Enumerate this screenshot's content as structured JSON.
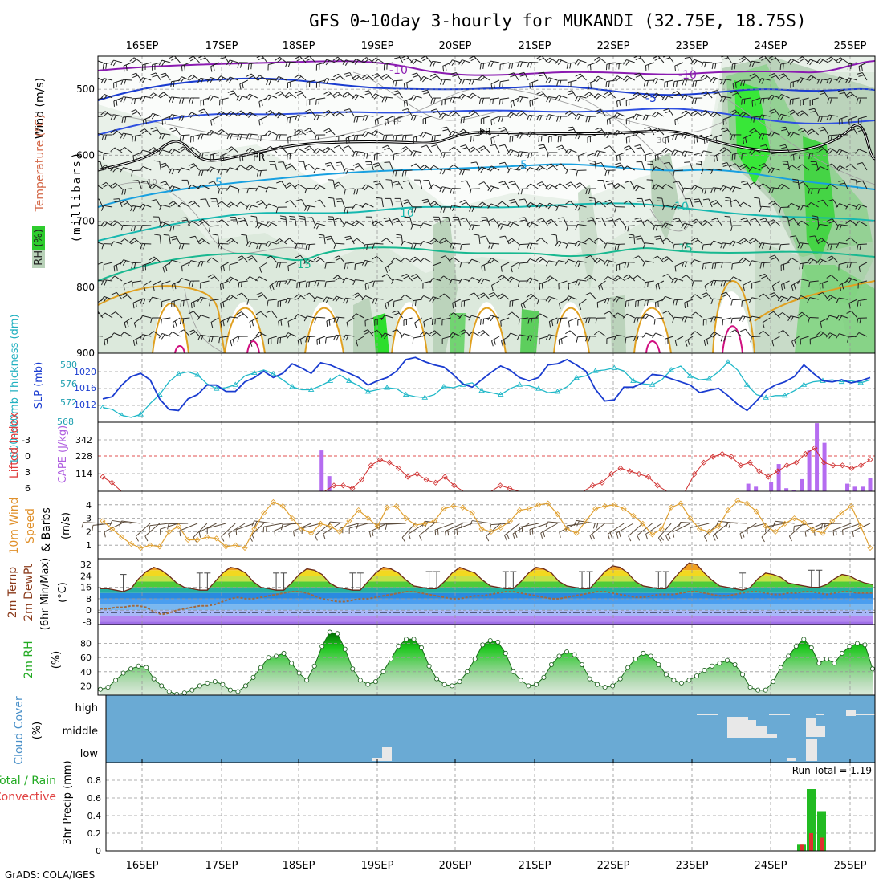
{
  "title": "GFS 0~10day 3-hourly for MUKANDI (32.75E, 18.75S)",
  "footer": "GrADS: COLA/IGES",
  "dates": [
    "16SEP",
    "17SEP",
    "18SEP",
    "19SEP",
    "20SEP",
    "21SEP",
    "22SEP",
    "23SEP",
    "24SEP",
    "25SEP"
  ],
  "panels": {
    "upper": {
      "label_wind": "Wind (m/s)",
      "label_temp": "Temperature (°C)",
      "label_rh": "RH (%)",
      "label_mb": "(millibars)",
      "yticks": [
        500,
        600,
        700,
        800,
        900
      ],
      "temp_labels": [
        "-10",
        "-10",
        "-5",
        "5",
        "5",
        "10",
        "10",
        "15",
        "15"
      ],
      "fr_labels": [
        "FR",
        "FR"
      ]
    },
    "slp": {
      "label_thk": "1000-500mb Thickness (dm)",
      "label_slp": "SLP (mb)",
      "thk_ticks": [
        "580",
        "576",
        "572",
        "568"
      ],
      "slp_ticks": [
        "1020",
        "1016",
        "1012"
      ]
    },
    "cape": {
      "label_li": "Lifted Index",
      "label_cape": "CAPE (J/kg)",
      "li_ticks": [
        "-3",
        "0",
        "3",
        "6"
      ],
      "cape_ticks": [
        "342",
        "228",
        "114"
      ]
    },
    "wind10": {
      "label_a": "10m Wind",
      "label_b": "Speed",
      "label_c": "& Barbs",
      "label_u": "(m/s)",
      "yticks": [
        "4",
        "3",
        "2",
        "1"
      ]
    },
    "temp2m": {
      "label_a": "2m Temp",
      "label_b": "2m DewPt",
      "label_c": "(6hr Min/Max)",
      "label_u": "(°C)",
      "yticks": [
        "32",
        "24",
        "16",
        "8",
        "0",
        "-8"
      ]
    },
    "rh2m": {
      "label_a": "2m RH",
      "label_u": "(%)",
      "yticks": [
        "80",
        "60",
        "40",
        "20"
      ]
    },
    "cloud": {
      "label_a": "Cloud Cover",
      "label_u": "(%)",
      "levels": [
        "high",
        "middle",
        "low"
      ]
    },
    "precip": {
      "label_a": "Total / Rain",
      "label_b": "Convective",
      "label_c": "3hr Precip (mm)",
      "run_total": "Run Total = 1.19",
      "yticks": [
        "0.8",
        "0.6",
        "0.4",
        "0.2",
        "0"
      ]
    }
  },
  "chart_data": [
    {
      "type": "line",
      "name": "SLP (mb)",
      "ylim": [
        1009,
        1022
      ],
      "values": [
        1013.4,
        1013.8,
        1016.0,
        1017.6,
        1018.2,
        1017.0,
        1013.4,
        1011.4,
        1011.2,
        1013.4,
        1014.2,
        1016.0,
        1016.0,
        1014.8,
        1014.8,
        1016.6,
        1017.4,
        1018.6,
        1017.4,
        1018.2,
        1020.0,
        1019.2,
        1018.2,
        1020.2,
        1019.8,
        1019.0,
        1018.2,
        1017.4,
        1016.0,
        1016.8,
        1017.4,
        1018.6,
        1020.8,
        1021.2,
        1020.4,
        1019.8,
        1019.4,
        1018.0,
        1016.2,
        1015.6,
        1017.0,
        1018.4,
        1019.6,
        1018.8,
        1017.4,
        1016.8,
        1017.4,
        1019.8,
        1020.0,
        1020.8,
        1019.8,
        1018.6,
        1015.2,
        1013.0,
        1013.2,
        1015.6,
        1015.6,
        1016.4,
        1018.0,
        1017.8,
        1017.2,
        1016.6,
        1016.0,
        1014.6,
        1015.0,
        1015.4,
        1014.0,
        1012.4,
        1011.2,
        1013.0,
        1015.0,
        1016.0,
        1016.6,
        1017.6,
        1019.8,
        1018.2,
        1016.8,
        1016.6,
        1017.0,
        1016.4,
        1016.8,
        1017.4
      ]
    },
    {
      "type": "line",
      "name": "1000-500mb Thickness (dm)",
      "ylim": [
        568,
        582
      ],
      "values": [
        571.0,
        570.6,
        569.4,
        569.0,
        569.6,
        571.8,
        573.6,
        576.2,
        577.8,
        578.2,
        577.6,
        575.8,
        574.8,
        575.0,
        575.6,
        577.4,
        578.0,
        578.6,
        577.8,
        576.6,
        575.2,
        574.6,
        574.6,
        575.4,
        576.4,
        577.6,
        576.4,
        575.4,
        574.2,
        574.6,
        575.0,
        574.8,
        573.6,
        573.2,
        573.0,
        573.6,
        575.2,
        575.0,
        575.6,
        576.0,
        574.4,
        574.0,
        573.6,
        574.8,
        575.6,
        575.4,
        574.8,
        574.0,
        574.2,
        575.2,
        577.0,
        577.4,
        578.4,
        578.6,
        579.0,
        578.4,
        576.4,
        575.8,
        575.6,
        576.6,
        578.6,
        579.4,
        577.4,
        576.6,
        576.8,
        578.2,
        580.2,
        578.6,
        575.6,
        573.6,
        573.0,
        573.4,
        573.4,
        574.4,
        575.6,
        576.2,
        576.4,
        576.6,
        576.2,
        576.4,
        576.0,
        576.6
      ]
    },
    {
      "type": "line",
      "name": "Lifted Index",
      "ylim": [
        6,
        -6
      ],
      "values": [
        3.5,
        4.5,
        6,
        6,
        6,
        6,
        6,
        6,
        6,
        6,
        6,
        6,
        6,
        6,
        6,
        6,
        6,
        6,
        6,
        6,
        6,
        6,
        6,
        6,
        6,
        5,
        5,
        5.5,
        4,
        1.5,
        0.5,
        1,
        2,
        3.5,
        3,
        4,
        4.5,
        3.5,
        5,
        6,
        6,
        6,
        6,
        5,
        5.5,
        6,
        6,
        6,
        6,
        6,
        6,
        6,
        6,
        5,
        4.5,
        3,
        2,
        2.5,
        3,
        3.5,
        5,
        6,
        6,
        6,
        3,
        1,
        0,
        -0.5,
        0,
        1.5,
        1,
        2.5,
        3.5,
        2.5,
        1.5,
        1,
        -0.5,
        -1.5,
        1,
        1.5,
        1.5,
        2,
        1.5,
        0.5
      ]
    },
    {
      "type": "bar",
      "name": "CAPE (J/kg)",
      "ylim": [
        0,
        456
      ],
      "values": [
        0,
        0,
        0,
        0,
        0,
        0,
        0,
        0,
        0,
        0,
        0,
        0,
        0,
        0,
        0,
        0,
        0,
        0,
        0,
        0,
        0,
        0,
        0,
        0,
        0,
        0,
        0,
        0,
        0,
        270,
        100,
        0,
        0,
        0,
        0,
        0,
        0,
        0,
        0,
        0,
        0,
        0,
        0,
        0,
        0,
        0,
        0,
        0,
        0,
        0,
        0,
        0,
        0,
        0,
        0,
        0,
        0,
        0,
        0,
        0,
        0,
        0,
        0,
        0,
        0,
        0,
        0,
        0,
        0,
        0,
        0,
        0,
        0,
        0,
        0,
        0,
        0,
        0,
        0,
        0,
        0,
        0,
        0,
        0,
        0,
        50,
        30,
        0,
        60,
        180,
        20,
        10,
        80,
        270,
        450,
        320,
        0,
        0,
        50,
        30,
        30,
        90
      ]
    },
    {
      "type": "line",
      "name": "10m Wind Speed (m/s)",
      "ylim": [
        0,
        5
      ],
      "values": [
        2.8,
        2.2,
        1.6,
        1.1,
        0.8,
        1.0,
        0.9,
        2.0,
        2.4,
        1.4,
        1.4,
        1.6,
        1.5,
        0.9,
        1.0,
        0.8,
        2.2,
        3.4,
        4.2,
        3.9,
        3.0,
        2.2,
        1.9,
        2.6,
        2.4,
        2.0,
        2.8,
        3.6,
        3.0,
        2.4,
        3.8,
        3.9,
        3.0,
        2.5,
        2.6,
        2.8,
        3.7,
        3.9,
        3.8,
        3.4,
        2.2,
        2.0,
        2.3,
        2.8,
        3.6,
        3.7,
        4.0,
        4.1,
        3.3,
        2.2,
        1.9,
        2.8,
        3.7,
        3.9,
        4.0,
        3.7,
        3.2,
        2.6,
        1.8,
        2.2,
        3.8,
        4.1,
        3.0,
        2.2,
        2.0,
        2.4,
        3.6,
        4.3,
        4.1,
        3.5,
        2.4,
        2.0,
        2.6,
        3.0,
        2.7,
        2.1,
        1.9,
        2.8,
        3.4,
        3.9,
        2.4,
        0.8
      ]
    },
    {
      "type": "area",
      "name": "2m Temp (°C)",
      "ylim": [
        -10,
        36
      ],
      "values": [
        15,
        15,
        14,
        13,
        15,
        22,
        27,
        30,
        28,
        24,
        19,
        16,
        15,
        14,
        14,
        20,
        26,
        30,
        29,
        26,
        20,
        16,
        15,
        14,
        14,
        19,
        25,
        29,
        28,
        25,
        19,
        16,
        15,
        14,
        14,
        20,
        26,
        30,
        29,
        26,
        21,
        17,
        16,
        15,
        15,
        20,
        26,
        30,
        28,
        26,
        21,
        17,
        16,
        15,
        15,
        20,
        26,
        30,
        29,
        26,
        20,
        17,
        16,
        15,
        15,
        21,
        27,
        31,
        30,
        26,
        20,
        17,
        16,
        15,
        15,
        22,
        28,
        33,
        32,
        26,
        21,
        17,
        16,
        15,
        14,
        16,
        22,
        26,
        25,
        23,
        19,
        18,
        17,
        16,
        16,
        18,
        22,
        25,
        24,
        21,
        19,
        18
      ]
    },
    {
      "type": "line",
      "name": "2m DewPt (°C)",
      "ylim": [
        -10,
        36
      ],
      "values": [
        1,
        1,
        2,
        2,
        3,
        3,
        2,
        -1,
        -3,
        -2,
        0,
        1,
        2,
        3,
        3,
        4,
        6,
        8,
        9,
        8,
        8,
        9,
        10,
        11,
        12,
        13,
        13,
        12,
        10,
        8,
        7,
        6,
        6,
        7,
        8,
        8,
        9,
        10,
        11,
        12,
        13,
        13,
        12,
        11,
        10,
        9,
        8,
        8,
        9,
        10,
        10,
        11,
        12,
        13,
        13,
        12,
        11,
        10,
        9,
        8,
        8,
        9,
        10,
        11,
        12,
        13,
        13,
        12,
        11,
        10,
        9,
        9,
        10,
        11,
        11,
        11,
        12,
        13,
        13,
        12,
        11,
        10,
        10,
        11,
        12,
        13,
        13,
        12,
        11,
        11,
        12,
        12,
        13,
        13,
        12,
        11,
        12,
        13,
        13,
        12,
        12,
        12
      ]
    },
    {
      "type": "area",
      "name": "2m RH (%)",
      "ylim": [
        0,
        100
      ],
      "values": [
        15,
        18,
        28,
        38,
        44,
        48,
        46,
        30,
        20,
        12,
        8,
        10,
        14,
        20,
        24,
        26,
        22,
        14,
        12,
        20,
        32,
        46,
        60,
        62,
        66,
        52,
        38,
        28,
        48,
        76,
        96,
        94,
        72,
        44,
        28,
        22,
        26,
        40,
        58,
        76,
        86,
        86,
        74,
        48,
        30,
        22,
        20,
        26,
        40,
        58,
        78,
        84,
        82,
        66,
        40,
        28,
        20,
        22,
        32,
        50,
        62,
        68,
        64,
        50,
        30,
        22,
        18,
        20,
        30,
        46,
        58,
        66,
        62,
        50,
        36,
        28,
        24,
        28,
        34,
        42,
        48,
        52,
        56,
        50,
        36,
        18,
        14,
        14,
        26,
        46,
        62,
        76,
        86,
        74,
        52,
        58,
        52,
        66,
        76,
        80,
        78,
        44
      ]
    },
    {
      "type": "bar",
      "name": "3hr Precip (mm)",
      "ylim": [
        0,
        1
      ],
      "values": [
        0.07,
        0.7,
        0.45
      ],
      "categories": [
        "24SEP 18Z",
        "25SEP 00Z",
        "25SEP 06Z"
      ]
    }
  ]
}
